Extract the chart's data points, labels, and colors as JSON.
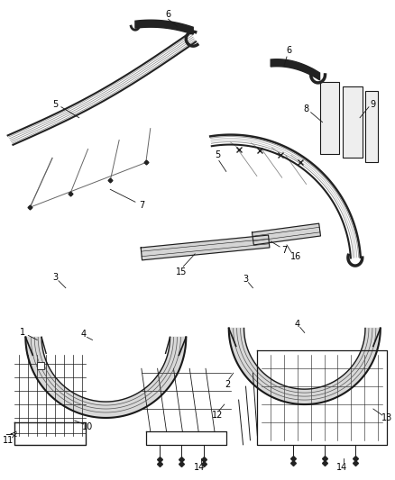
{
  "background_color": "#ffffff",
  "fig_width": 4.38,
  "fig_height": 5.33,
  "dpi": 100,
  "line_color": "#1a1a1a",
  "label_fontsize": 7.0,
  "label_color": "#000000",
  "strip_color": "#222222",
  "arch_fill": "#e8e8e8",
  "arch_line": "#111111"
}
